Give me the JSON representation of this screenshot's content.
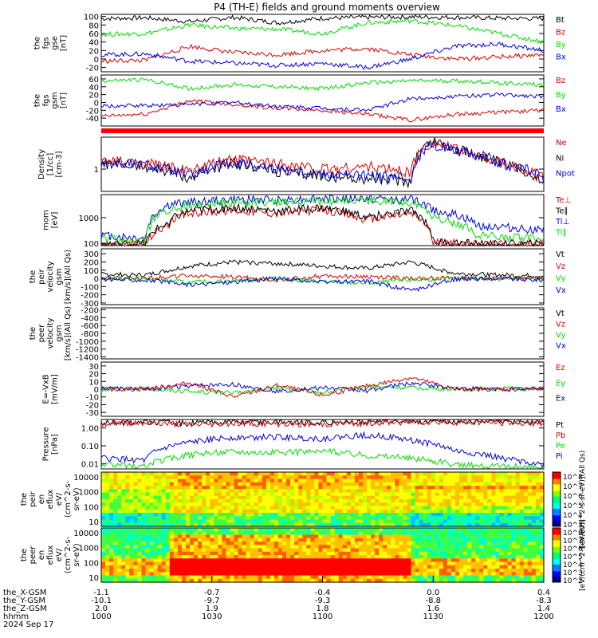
{
  "title": "P4 (TH-E) fields and ground moments overview",
  "colors": {
    "black": "#000000",
    "red": "#dd0000",
    "green": "#00dd00",
    "blue": "#0000dd"
  },
  "chart_data": [
    {
      "id": "p1",
      "type": "line",
      "ylabel": [
        "the",
        "fgs",
        "gse",
        "[nT]"
      ],
      "yticks": [
        "100",
        "80",
        "60",
        "40",
        "20",
        "0",
        "-20"
      ],
      "yrange": [
        -30,
        105
      ],
      "legend": [
        {
          "name": "Bt",
          "color": "black"
        },
        {
          "name": "Bz",
          "color": "red"
        },
        {
          "name": "By",
          "color": "green"
        },
        {
          "name": "Bx",
          "color": "blue"
        }
      ],
      "series": [
        {
          "name": "Bt",
          "color": "black",
          "x": [
            0,
            0.1,
            0.2,
            0.3,
            0.4,
            0.5,
            0.6,
            0.7,
            0.8,
            0.9,
            1
          ],
          "y": [
            95,
            97,
            88,
            98,
            85,
            96,
            98,
            99,
            98,
            96,
            95
          ]
        },
        {
          "name": "By",
          "color": "green",
          "x": [
            0,
            0.1,
            0.2,
            0.3,
            0.4,
            0.5,
            0.6,
            0.7,
            0.8,
            0.9,
            1
          ],
          "y": [
            58,
            60,
            80,
            72,
            70,
            60,
            85,
            90,
            78,
            60,
            40
          ]
        },
        {
          "name": "Bz",
          "color": "red",
          "x": [
            0,
            0.1,
            0.2,
            0.3,
            0.4,
            0.5,
            0.6,
            0.7,
            0.8,
            0.9,
            1
          ],
          "y": [
            -5,
            -3,
            30,
            15,
            10,
            20,
            25,
            10,
            0,
            5,
            10
          ]
        },
        {
          "name": "Bx",
          "color": "blue",
          "x": [
            0,
            0.1,
            0.2,
            0.3,
            0.4,
            0.5,
            0.6,
            0.7,
            0.8,
            0.9,
            1
          ],
          "y": [
            10,
            12,
            -5,
            -10,
            -15,
            -10,
            -20,
            0,
            30,
            35,
            20
          ]
        }
      ]
    },
    {
      "id": "p2",
      "type": "line",
      "ylabel": [
        "the",
        "fgs",
        "gsm",
        "[nT]"
      ],
      "yticks": [
        "60",
        "40",
        "20",
        "0",
        "-20",
        "-40"
      ],
      "yrange": [
        -60,
        70
      ],
      "legend": [
        {
          "name": "Bz",
          "color": "red"
        },
        {
          "name": "By",
          "color": "green"
        },
        {
          "name": "Bx",
          "color": "blue"
        }
      ],
      "series": [
        {
          "name": "By",
          "color": "green",
          "x": [
            0,
            0.1,
            0.2,
            0.3,
            0.4,
            0.5,
            0.6,
            0.7,
            0.8,
            0.9,
            1
          ],
          "y": [
            55,
            58,
            35,
            45,
            40,
            35,
            50,
            55,
            55,
            50,
            45
          ]
        },
        {
          "name": "Bz",
          "color": "red",
          "x": [
            0,
            0.1,
            0.2,
            0.3,
            0.4,
            0.5,
            0.6,
            0.7,
            0.8,
            0.9,
            1
          ],
          "y": [
            -35,
            -30,
            5,
            -5,
            -15,
            -20,
            -30,
            -45,
            -30,
            -25,
            -20
          ]
        },
        {
          "name": "Bx",
          "color": "blue",
          "x": [
            0,
            0.1,
            0.2,
            0.3,
            0.4,
            0.5,
            0.6,
            0.7,
            0.8,
            0.9,
            1
          ],
          "y": [
            -10,
            -8,
            -5,
            0,
            -10,
            -15,
            -20,
            10,
            15,
            20,
            15
          ]
        }
      ]
    },
    {
      "id": "p3",
      "type": "line",
      "ylabel": [
        "Density",
        "[1/cc]",
        "[cm-3]"
      ],
      "yticks": [
        "1"
      ],
      "yscale": "log",
      "yrange": [
        0.2,
        10
      ],
      "legend": [
        {
          "name": "Ne",
          "color": "red"
        },
        {
          "name": "Ni",
          "color": "black"
        },
        {
          "name": "Npot",
          "color": "blue"
        }
      ],
      "series": [
        {
          "name": "Ni",
          "color": "black",
          "x": [
            0,
            0.1,
            0.2,
            0.3,
            0.4,
            0.5,
            0.6,
            0.7,
            0.75,
            0.8,
            0.9,
            1
          ],
          "y": [
            1.5,
            1.2,
            0.5,
            1.5,
            0.8,
            0.6,
            0.5,
            0.4,
            8,
            4,
            1.5,
            0.4
          ]
        },
        {
          "name": "Ne",
          "color": "red",
          "x": [
            0,
            0.1,
            0.2,
            0.3,
            0.4,
            0.5,
            0.6,
            0.7,
            0.75,
            0.8,
            0.9,
            1
          ],
          "y": [
            1.8,
            1.5,
            0.8,
            2,
            1.5,
            1.0,
            1.2,
            0.8,
            7,
            4,
            1.5,
            0.5
          ]
        },
        {
          "name": "Npot",
          "color": "blue",
          "x": [
            0,
            0.1,
            0.2,
            0.3,
            0.4,
            0.5,
            0.6,
            0.7,
            0.75,
            0.8,
            0.9,
            1
          ],
          "y": [
            1.6,
            1.3,
            0.6,
            1.6,
            1.0,
            0.7,
            0.6,
            0.5,
            6,
            4,
            1.6,
            0.5
          ]
        }
      ]
    },
    {
      "id": "p4",
      "type": "line",
      "ylabel": [
        "mom",
        "[eV]"
      ],
      "yticks": [
        "1000",
        "100"
      ],
      "yscale": "log",
      "yrange": [
        80,
        8000
      ],
      "legend": [
        {
          "name": "Te⊥",
          "color": "red"
        },
        {
          "name": "Te∥",
          "color": "black"
        },
        {
          "name": "Ti⊥",
          "color": "blue"
        },
        {
          "name": "Ti∥",
          "color": "green"
        }
      ],
      "series": [
        {
          "name": "Ti⊥",
          "color": "blue",
          "x": [
            0,
            0.1,
            0.15,
            0.2,
            0.3,
            0.4,
            0.5,
            0.6,
            0.7,
            0.75,
            0.85,
            1
          ],
          "y": [
            200,
            150,
            3000,
            4000,
            5000,
            5000,
            5500,
            5500,
            5000,
            2000,
            500,
            300
          ]
        },
        {
          "name": "Ti∥",
          "color": "green",
          "x": [
            0,
            0.1,
            0.15,
            0.2,
            0.3,
            0.4,
            0.5,
            0.6,
            0.7,
            0.75,
            0.85,
            1
          ],
          "y": [
            150,
            110,
            2000,
            3000,
            4000,
            4000,
            4500,
            4500,
            4000,
            1000,
            200,
            150
          ]
        },
        {
          "name": "Te⊥",
          "color": "red",
          "x": [
            0,
            0.1,
            0.15,
            0.2,
            0.3,
            0.4,
            0.5,
            0.6,
            0.7,
            0.75,
            0.85,
            1
          ],
          "y": [
            90,
            90,
            500,
            1500,
            2000,
            1500,
            2000,
            800,
            1500,
            100,
            90,
            90
          ]
        },
        {
          "name": "Te∥",
          "color": "black",
          "x": [
            0,
            0.1,
            0.15,
            0.2,
            0.3,
            0.4,
            0.5,
            0.6,
            0.7,
            0.75,
            0.85,
            1
          ],
          "y": [
            90,
            90,
            600,
            1800,
            2500,
            1800,
            2400,
            1000,
            1800,
            110,
            90,
            90
          ]
        }
      ]
    },
    {
      "id": "p5",
      "type": "line",
      "ylabel": [
        "the",
        "peir",
        "velocity",
        "gsm",
        "[km/s](All Qs)"
      ],
      "yticks": [
        "300",
        "200",
        "100",
        "0",
        "-100",
        "-200",
        "-300"
      ],
      "yrange": [
        -320,
        360
      ],
      "legend": [
        {
          "name": "Vt",
          "color": "black"
        },
        {
          "name": "Vz",
          "color": "red"
        },
        {
          "name": "Vy",
          "color": "green"
        },
        {
          "name": "Vx",
          "color": "blue"
        }
      ],
      "series": [
        {
          "name": "Vt",
          "color": "black",
          "x": [
            0,
            0.1,
            0.2,
            0.3,
            0.4,
            0.5,
            0.6,
            0.7,
            0.8,
            0.9,
            1
          ],
          "y": [
            50,
            40,
            150,
            200,
            180,
            150,
            120,
            200,
            60,
            40,
            30
          ]
        },
        {
          "name": "Vz",
          "color": "red",
          "x": [
            0,
            0.1,
            0.2,
            0.3,
            0.4,
            0.5,
            0.6,
            0.7,
            0.8,
            0.9,
            1
          ],
          "y": [
            0,
            5,
            30,
            20,
            -20,
            30,
            20,
            0,
            5,
            0,
            5
          ]
        },
        {
          "name": "Vy",
          "color": "green",
          "x": [
            0,
            0.1,
            0.2,
            0.3,
            0.4,
            0.5,
            0.6,
            0.7,
            0.8,
            0.9,
            1
          ],
          "y": [
            0,
            -5,
            -50,
            -30,
            0,
            -40,
            -60,
            -20,
            0,
            -5,
            0
          ]
        },
        {
          "name": "Vx",
          "color": "blue",
          "x": [
            0,
            0.1,
            0.2,
            0.3,
            0.4,
            0.5,
            0.6,
            0.7,
            0.8,
            0.9,
            1
          ],
          "y": [
            -10,
            -20,
            -80,
            -40,
            0,
            -50,
            -30,
            -150,
            -10,
            0,
            -20
          ]
        }
      ]
    },
    {
      "id": "p6",
      "type": "line",
      "ylabel": [
        "the",
        "peer",
        "velocity",
        "gsm",
        "[km/s](All Qs)"
      ],
      "yticks": [
        "-200",
        "-400",
        "-600",
        "-800",
        "-1000",
        "-1200",
        "-1400"
      ],
      "yrange": [
        -1450,
        -150
      ],
      "legend": [
        {
          "name": "Vt",
          "color": "black"
        },
        {
          "name": "Vz",
          "color": "red"
        },
        {
          "name": "Vy",
          "color": "green"
        },
        {
          "name": "Vx",
          "color": "blue"
        }
      ],
      "series": []
    },
    {
      "id": "p7",
      "type": "line",
      "ylabel": [
        "E=-VxB",
        "[mV/m]"
      ],
      "yticks": [
        "30",
        "20",
        "10",
        "0",
        "-10",
        "-20",
        "-30"
      ],
      "yrange": [
        -35,
        35
      ],
      "legend": [
        {
          "name": "Ez",
          "color": "red"
        },
        {
          "name": "Ey",
          "color": "green"
        },
        {
          "name": "Ex",
          "color": "blue"
        }
      ],
      "series": [
        {
          "name": "Ey",
          "color": "green",
          "x": [
            0,
            0.1,
            0.2,
            0.3,
            0.4,
            0.5,
            0.6,
            0.7,
            0.8,
            0.9,
            1
          ],
          "y": [
            0,
            1,
            -3,
            -5,
            2,
            -4,
            3,
            2,
            0,
            1,
            0
          ]
        },
        {
          "name": "Ex",
          "color": "blue",
          "x": [
            0,
            0.1,
            0.2,
            0.3,
            0.4,
            0.5,
            0.6,
            0.7,
            0.8,
            0.9,
            1
          ],
          "y": [
            1,
            0,
            4,
            6,
            -3,
            2,
            -2,
            8,
            1,
            0,
            1
          ]
        },
        {
          "name": "Ez",
          "color": "red",
          "x": [
            0,
            0.1,
            0.2,
            0.3,
            0.4,
            0.5,
            0.6,
            0.7,
            0.8,
            0.9,
            1
          ],
          "y": [
            0,
            0,
            8,
            -10,
            5,
            -8,
            4,
            15,
            0,
            0,
            0
          ]
        }
      ]
    },
    {
      "id": "p8",
      "type": "line",
      "ylabel": [
        "Pressure",
        "[nPa]"
      ],
      "yticks": [
        "1.00",
        "0.10",
        "0.01"
      ],
      "yscale": "log",
      "yrange": [
        0.005,
        3
      ],
      "legend": [
        {
          "name": "Pt",
          "color": "black"
        },
        {
          "name": "Pb",
          "color": "red"
        },
        {
          "name": "Pe",
          "color": "green"
        },
        {
          "name": "Pi",
          "color": "blue"
        }
      ],
      "series": [
        {
          "name": "Pt",
          "color": "black",
          "x": [
            0,
            0.1,
            0.2,
            0.3,
            0.4,
            0.5,
            0.6,
            0.7,
            0.8,
            0.9,
            1
          ],
          "y": [
            2.0,
            2.2,
            1.8,
            2.3,
            2.2,
            2.0,
            2.3,
            2.5,
            2.4,
            2.3,
            2.2
          ]
        },
        {
          "name": "Pb",
          "color": "red",
          "x": [
            0,
            0.1,
            0.2,
            0.3,
            0.4,
            0.5,
            0.6,
            0.7,
            0.8,
            0.9,
            1
          ],
          "y": [
            1.8,
            2.0,
            1.5,
            1.8,
            1.7,
            1.6,
            1.9,
            2.2,
            2.1,
            2.0,
            1.9
          ]
        },
        {
          "name": "Pi",
          "color": "blue",
          "x": [
            0,
            0.1,
            0.2,
            0.3,
            0.4,
            0.5,
            0.6,
            0.7,
            0.8,
            0.9,
            1
          ],
          "y": [
            0.02,
            0.015,
            0.15,
            0.3,
            0.3,
            0.25,
            0.4,
            0.2,
            0.05,
            0.02,
            0.008
          ]
        },
        {
          "name": "Pe",
          "color": "green",
          "x": [
            0,
            0.1,
            0.2,
            0.3,
            0.4,
            0.5,
            0.6,
            0.7,
            0.8,
            0.9,
            1
          ],
          "y": [
            0.008,
            0.007,
            0.03,
            0.05,
            0.04,
            0.05,
            0.03,
            0.02,
            0.008,
            0.007,
            0.006
          ]
        }
      ]
    },
    {
      "id": "p9",
      "type": "heatmap",
      "ylabel": [
        "the",
        "peir",
        "en",
        "eflux",
        "eV/",
        "(cm^2-s-",
        "sr-eV)"
      ],
      "yticks": [
        "10000",
        "1000",
        "100",
        "10"
      ],
      "yscale": "log",
      "colorbar": {
        "ticks": [
          "10^8",
          "10^7",
          "10^6",
          "10^5",
          "10^4",
          "10^3"
        ],
        "label": "[eV/(cm^2-s-sr-eV)](All Qs)"
      }
    },
    {
      "id": "p10",
      "type": "heatmap",
      "ylabel": [
        "the",
        "peer",
        "en",
        "eflux",
        "eV/",
        "(cm^2-s-",
        "sr-eV)"
      ],
      "yticks": [
        "10000",
        "1000",
        "100",
        "10"
      ],
      "yscale": "log",
      "colorbar": {
        "ticks": [
          "10^8",
          "10^7",
          "10^6",
          "10^5",
          "10^4",
          "10^3",
          "10^2"
        ],
        "label": "[eV/(cm^2-s-sr-eV)]"
      }
    }
  ],
  "xaxis": {
    "rows": [
      {
        "label": "the_X-GSM",
        "values": [
          "-1.1",
          "-0.7",
          "-0.4",
          "0.0",
          "0.4"
        ]
      },
      {
        "label": "the_Y-GSM",
        "values": [
          "-10.1",
          "-9.7",
          "-9.3",
          "-8.8",
          "-8.3"
        ]
      },
      {
        "label": "the_Z-GSM",
        "values": [
          "2.0",
          "1.9",
          "1.8",
          "1.6",
          "1.4"
        ]
      },
      {
        "label": "hhmm",
        "values": [
          "1000",
          "1030",
          "1100",
          "1130",
          "1200"
        ]
      }
    ],
    "date": "2024 Sep 17"
  }
}
